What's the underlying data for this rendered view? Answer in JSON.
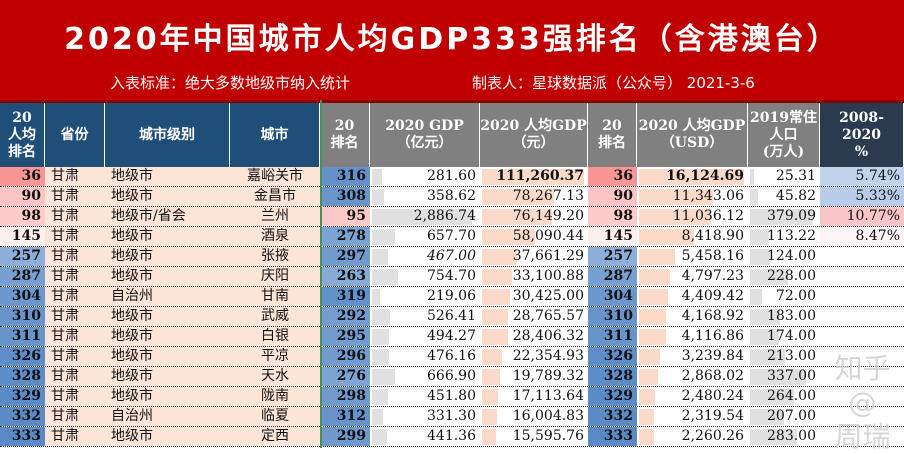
{
  "title": "2020年中国城市人均GDP333强排名（含港澳台）",
  "subtitle_left": "入表标准：绝大多数地级市纳入统计",
  "subtitle_right": "制表人：星球数据派（公众号） 2021-3-6",
  "headers": [
    "20\n人均\n排名",
    "省份",
    "城市级别",
    "城市",
    "20\n排名",
    "2020 GDP\n（亿元）",
    "2020 人均GDP\n（元）",
    "20\n排名",
    "2020 人均GDP\n（USD）",
    "2019常住\n人口\n(万人)",
    "2008-2020\n%"
  ],
  "colors": {
    "banner": "#c00000",
    "header_blue": "#1f4e79",
    "header_gray": "#808080",
    "header_navy": "#2b3a4f",
    "rank_high": "#f8696b",
    "rank_low": "#5a8ac6",
    "peach": "#fce4d6"
  },
  "rows": [
    [
      "36",
      "甘肃",
      "地级市",
      "嘉峪关市",
      "316",
      "281.60",
      "111,260.37",
      "36",
      "16,124.69",
      "25.31",
      "5.74%"
    ],
    [
      "90",
      "甘肃",
      "地级市",
      "金昌市",
      "308",
      "358.62",
      "78,267.13",
      "90",
      "11,343.06",
      "45.82",
      "5.33%"
    ],
    [
      "98",
      "甘肃",
      "地级市/省会",
      "兰州",
      "95",
      "2,886.74",
      "76,149.20",
      "98",
      "11,036.12",
      "379.09",
      "10.77%"
    ],
    [
      "145",
      "甘肃",
      "地级市",
      "酒泉",
      "278",
      "657.70",
      "58,090.44",
      "145",
      "8,418.90",
      "113.22",
      "8.47%"
    ],
    [
      "257",
      "甘肃",
      "地级市",
      "张掖",
      "297",
      "467.00",
      "37,661.29",
      "257",
      "5,458.16",
      "124.00",
      ""
    ],
    [
      "287",
      "甘肃",
      "地级市",
      "庆阳",
      "263",
      "754.70",
      "33,100.88",
      "287",
      "4,797.23",
      "228.00",
      ""
    ],
    [
      "304",
      "甘肃",
      "自治州",
      "甘南",
      "319",
      "219.06",
      "30,425.00",
      "304",
      "4,409.42",
      "72.00",
      ""
    ],
    [
      "310",
      "甘肃",
      "地级市",
      "武威",
      "292",
      "526.41",
      "28,765.57",
      "310",
      "4,168.92",
      "183.00",
      ""
    ],
    [
      "311",
      "甘肃",
      "地级市",
      "白银",
      "295",
      "494.27",
      "28,406.32",
      "311",
      "4,116.86",
      "174.00",
      ""
    ],
    [
      "326",
      "甘肃",
      "地级市",
      "平凉",
      "296",
      "476.16",
      "22,354.93",
      "326",
      "3,239.84",
      "213.00",
      ""
    ],
    [
      "328",
      "甘肃",
      "地级市",
      "天水",
      "276",
      "666.90",
      "19,789.32",
      "328",
      "2,868.02",
      "337.00",
      ""
    ],
    [
      "329",
      "甘肃",
      "地级市",
      "陇南",
      "298",
      "451.80",
      "17,113.64",
      "329",
      "2,480.24",
      "264.00",
      ""
    ],
    [
      "332",
      "甘肃",
      "自治州",
      "临夏",
      "312",
      "331.30",
      "16,004.83",
      "332",
      "2,319.54",
      "207.00",
      ""
    ],
    [
      "333",
      "甘肃",
      "地级市",
      "定西",
      "299",
      "441.36",
      "15,595.76",
      "333",
      "2,260.26",
      "283.00",
      ""
    ]
  ],
  "watermark": "知乎 @周瑞"
}
